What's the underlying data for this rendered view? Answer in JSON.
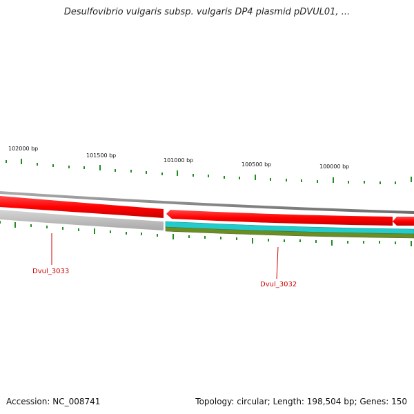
{
  "title": "Desulfovibrio vulgaris subsp. vulgaris DP4 plasmid pDVUL01, ...",
  "ruler": {
    "labels": [
      "102000 bp",
      "101500 bp",
      "101000 bp",
      "100500 bp",
      "100000 bp"
    ]
  },
  "genes": [
    {
      "name": "Dvul_3033"
    },
    {
      "name": "Dvul_3032"
    }
  ],
  "colors": {
    "outer_ring": "#888888",
    "forward_cds": "#ff0000",
    "reverse_gray": "#c0c0c0",
    "reverse_cyan": "#22cccc",
    "reverse_olive": "#6b8e23",
    "tick": "#228b22",
    "gene_label": "#cc0000"
  },
  "footer": {
    "accession": "Accession: NC_008741",
    "topology": "Topology: circular; Length: 198,504 bp; Genes: 150"
  }
}
